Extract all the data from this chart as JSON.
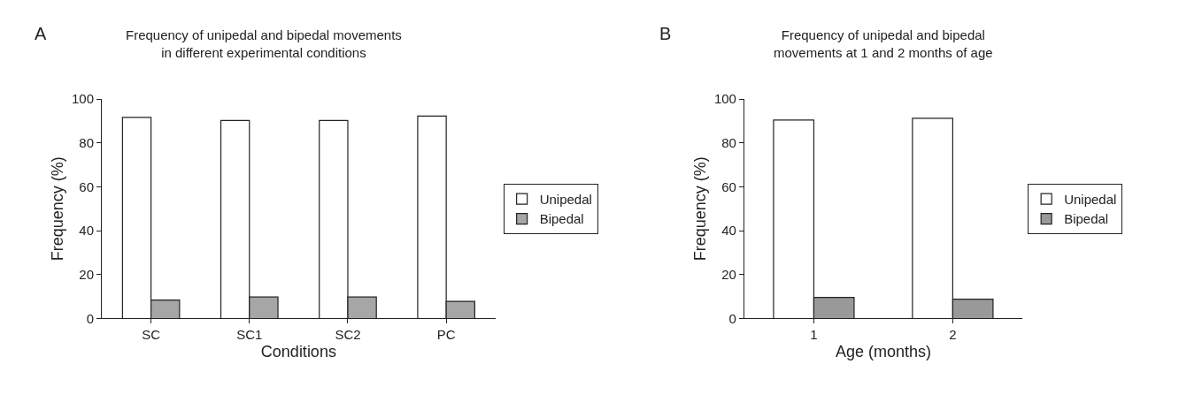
{
  "chart_data": [
    {
      "type": "bar",
      "title": "Frequency of unipedal and bipedal movements\nin different experimental conditions",
      "annotations": [
        "A"
      ],
      "xlabel": "Conditions",
      "ylabel": "Frequency (%)",
      "categories": [
        "SC",
        "SC1",
        "SC2",
        "PC"
      ],
      "series": [
        {
          "name": "Unipedal",
          "color": "#ffffff",
          "values": [
            91.6,
            90.2,
            90.2,
            92.2
          ]
        },
        {
          "name": "Bipedal",
          "color": "#a6a6a6",
          "values": [
            8.4,
            9.8,
            9.8,
            7.8
          ]
        }
      ],
      "ylim": [
        0,
        100
      ],
      "yticks": [
        0,
        20,
        40,
        60,
        80,
        100
      ],
      "legend": "right"
    },
    {
      "type": "bar",
      "title": "Frequency of unipedal and bipedal\nmovements at 1 and 2 months of age",
      "annotations": [
        "B"
      ],
      "xlabel": "Age (months)",
      "ylabel": "Frequency (%)",
      "categories": [
        "1",
        "2"
      ],
      "series": [
        {
          "name": "Unipedal",
          "color": "#ffffff",
          "values": [
            90.4,
            91.2
          ]
        },
        {
          "name": "Bipedal",
          "color": "#999999",
          "values": [
            9.6,
            8.8
          ]
        }
      ],
      "ylim": [
        0,
        100
      ],
      "yticks": [
        0,
        20,
        40,
        60,
        80,
        100
      ],
      "legend": "right"
    }
  ]
}
